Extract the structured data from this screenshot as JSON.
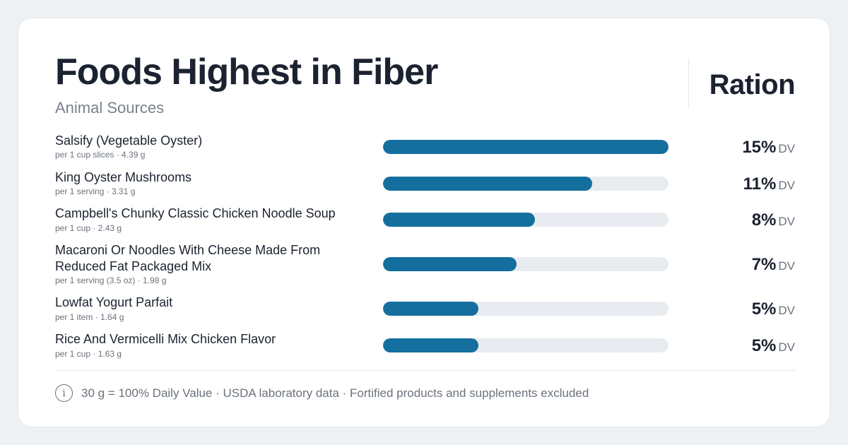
{
  "header": {
    "title": "Foods Highest in Fiber",
    "subtitle": "Animal Sources",
    "brand": "Ration"
  },
  "colors": {
    "bar": "#146f9e",
    "track": "#e8ecf0"
  },
  "chart_data": {
    "type": "bar",
    "orientation": "horizontal",
    "title": "Foods Highest in Fiber",
    "subtitle": "Animal Sources",
    "unit": "DV",
    "xlim": [
      0,
      15
    ],
    "items": [
      {
        "name": "Salsify (Vegetable Oyster)",
        "serving": "per 1 cup slices · 4.39 g",
        "value": 15,
        "label": "15%"
      },
      {
        "name": "King Oyster Mushrooms",
        "serving": "per 1 serving · 3.31 g",
        "value": 11,
        "label": "11%"
      },
      {
        "name": "Campbell's Chunky Classic Chicken Noodle Soup",
        "serving": "per 1 cup · 2.43 g",
        "value": 8,
        "label": "8%"
      },
      {
        "name": "Macaroni Or Noodles With Cheese Made From Reduced Fat Packaged Mix",
        "serving": "per 1 serving (3.5 oz) · 1.98 g",
        "value": 7,
        "label": "7%"
      },
      {
        "name": "Lowfat Yogurt Parfait",
        "serving": "per 1 item · 1.64 g",
        "value": 5,
        "label": "5%"
      },
      {
        "name": "Rice And Vermicelli Mix Chicken Flavor",
        "serving": "per 1 cup · 1.63 g",
        "value": 5,
        "label": "5%"
      }
    ]
  },
  "footer": {
    "icon": "info-icon",
    "icon_glyph": "i",
    "note": "30 g = 100% Daily Value · USDA laboratory data · Fortified products and supplements excluded"
  }
}
